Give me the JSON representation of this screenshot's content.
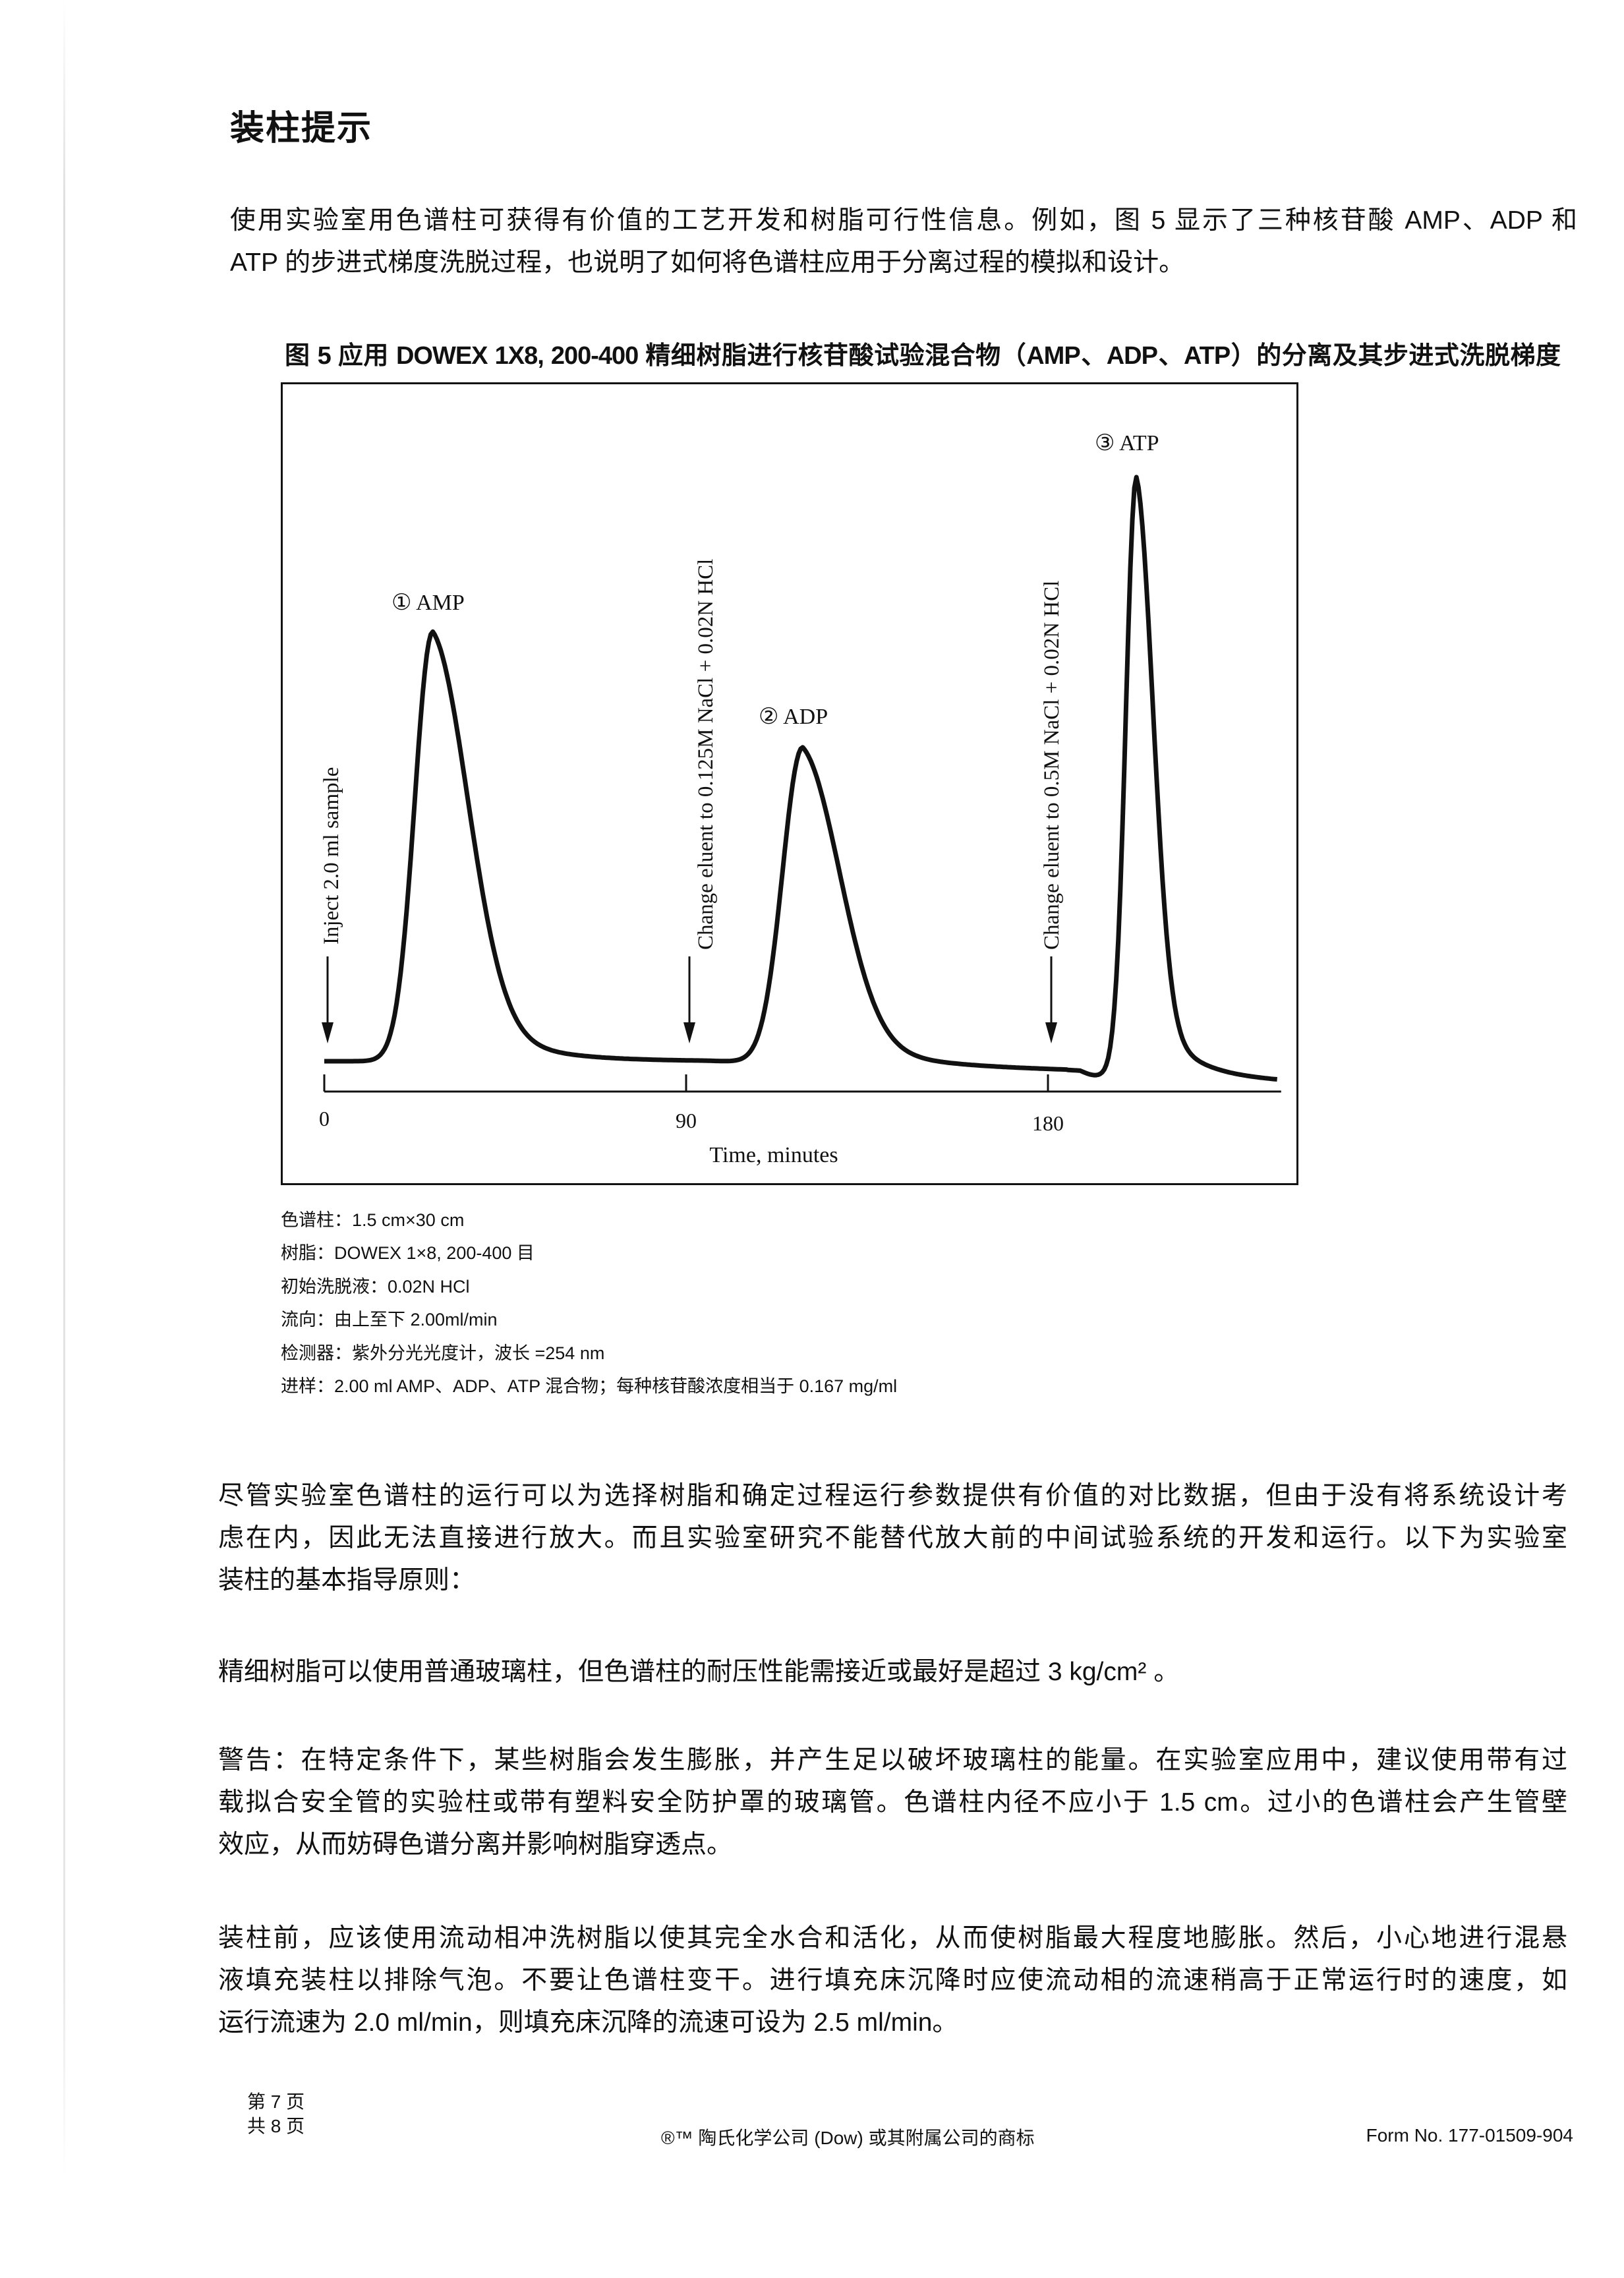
{
  "title": "装柱提示",
  "intro": {
    "lines": [
      "使用实验室用色谱柱可获得有价值的工艺开发和树脂可行性信息。例如，图 5 显示了三种核苷酸 AMP、ADP 和",
      "ATP 的步进式梯度洗脱过程，也说明了如何将色谱柱应用于分离过程的模拟和设计。"
    ]
  },
  "figure_caption": "图 5 应用 DOWEX 1X8, 200-400 精细树脂进行核苷酸试验混合物（AMP、ADP、ATP）的分离及其步进式洗脱梯度",
  "chart_data": {
    "type": "line",
    "title": "",
    "xlabel": "Time, minutes",
    "ylabel": "",
    "xlim": [
      0,
      240
    ],
    "xticks": [
      0,
      90,
      180
    ],
    "xtick_labels": [
      "0",
      "90",
      "180"
    ],
    "y_axis_shown": false,
    "grid": false,
    "line_color": "#111111",
    "peaks": [
      {
        "label": "① AMP",
        "time": 27,
        "relative_height": 0.72
      },
      {
        "label": "② ADP",
        "time": 119,
        "relative_height": 0.53
      },
      {
        "label": "③ ATP",
        "time": 202,
        "relative_height": 1.0
      }
    ],
    "annotations": [
      {
        "time": 0,
        "text": "Inject 2.0 ml sample"
      },
      {
        "time": 90,
        "text": "Change eluent to 0.125M NaCl + 0.02N HCl"
      },
      {
        "time": 180,
        "text": "Change eluent to 0.5M NaCl + 0.02N HCl"
      }
    ]
  },
  "notes": [
    "色谱柱：1.5 cm×30 cm",
    "树脂：DOWEX 1×8, 200-400 目",
    "初始洗脱液：0.02N HCl",
    "流向：由上至下 2.00ml/min",
    "检测器：紫外分光光度计，波长 =254 nm",
    "进样：2.00 ml AMP、ADP、ATP 混合物；每种核苷酸浓度相当于 0.167 mg/ml"
  ],
  "para2": {
    "lines": [
      "尽管实验室色谱柱的运行可以为选择树脂和确定过程运行参数提供有价值的对比数据，但由于没有将系统设计考",
      "虑在内，因此无法直接进行放大。而且实验室研究不能替代放大前的中间试验系统的开发和运行。以下为实验室",
      "装柱的基本指导原则："
    ]
  },
  "para3": {
    "lines": [
      "精细树脂可以使用普通玻璃柱，但色谱柱的耐压性能需接近或最好是超过 3 kg/cm² 。"
    ]
  },
  "para4": {
    "lines": [
      "警告：在特定条件下，某些树脂会发生膨胀，并产生足以破坏玻璃柱的能量。在实验室应用中，建议使用带有过",
      "载拟合安全管的实验柱或带有塑料安全防护罩的玻璃管。色谱柱内径不应小于 1.5 cm。过小的色谱柱会产生管壁",
      "效应，从而妨碍色谱分离并影响树脂穿透点。"
    ]
  },
  "para5": {
    "lines": [
      "装柱前，应该使用流动相冲洗树脂以使其完全水合和活化，从而使树脂最大程度地膨胀。然后，小心地进行混悬",
      "液填充装柱以排除气泡。不要让色谱柱变干。进行填充床沉降时应使流动相的流速稍高于正常运行时的速度，如",
      "运行流速为 2.0 ml/min，则填充床沉降的流速可设为 2.5 ml/min。"
    ]
  },
  "footer": {
    "page": "第 7 页",
    "total": "共 8 页",
    "trademark": "®™ 陶氏化学公司 (Dow) 或其附属公司的商标",
    "form_no": "Form No. 177-01509-904"
  }
}
